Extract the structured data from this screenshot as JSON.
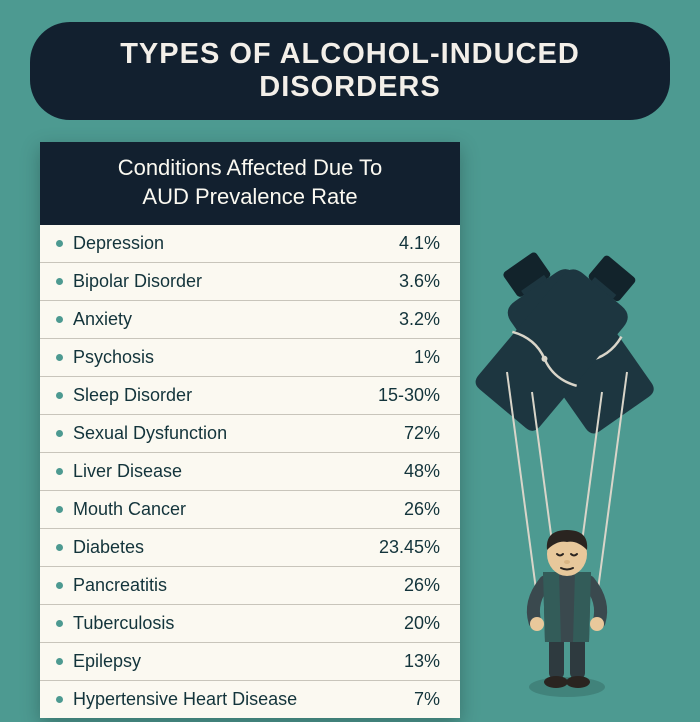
{
  "colors": {
    "background": "#4d9a91",
    "banner_bg": "#12202f",
    "banner_text": "#f3efe9",
    "card_bg": "#fbf9f1",
    "card_header_bg": "#12202f",
    "card_header_text": "#fbf9f1",
    "row_text": "#13343b",
    "row_border": "#c8c5bb",
    "bullet": "#4d9a91",
    "bottle_fill": "#1d3640",
    "bottle_dark": "#12232b",
    "string": "#d9d5c9",
    "skin": "#e8c89b",
    "hair": "#2a2420",
    "vest": "#335c59",
    "shirt": "#3a494e",
    "pants": "#2e3a3f"
  },
  "title": "TYPES OF ALCOHOL-INDUCED DISORDERS",
  "card": {
    "header_line1": "Conditions Affected Due To",
    "header_line2": "AUD Prevalence Rate",
    "rows": [
      {
        "label": "Depression",
        "value": "4.1%"
      },
      {
        "label": "Bipolar Disorder",
        "value": "3.6%"
      },
      {
        "label": "Anxiety",
        "value": "3.2%"
      },
      {
        "label": "Psychosis",
        "value": "1%"
      },
      {
        "label": "Sleep Disorder",
        "value": "15-30%"
      },
      {
        "label": "Sexual Dysfunction",
        "value": "72%"
      },
      {
        "label": "Liver Disease",
        "value": "48%"
      },
      {
        "label": "Mouth Cancer",
        "value": "26%"
      },
      {
        "label": "Diabetes",
        "value": "23.45%"
      },
      {
        "label": "Pancreatitis",
        "value": "26%"
      },
      {
        "label": "Tuberculosis",
        "value": "20%"
      },
      {
        "label": "Epilepsy",
        "value": "13%"
      },
      {
        "label": "Hypertensive Heart Disease",
        "value": "7%"
      }
    ]
  }
}
